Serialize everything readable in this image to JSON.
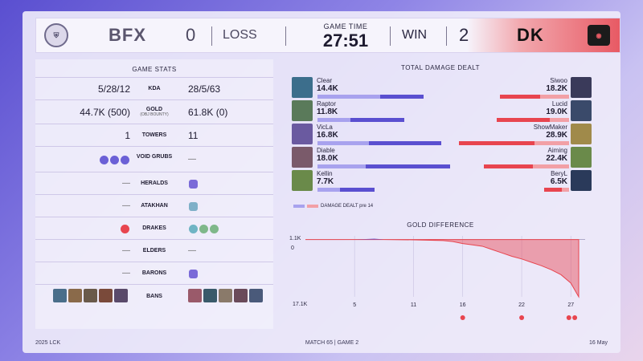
{
  "header": {
    "left_team": "BFX",
    "left_score": "0",
    "left_result": "LOSS",
    "game_time_label": "GAME TIME",
    "game_time": "27:51",
    "right_result": "WIN",
    "right_score": "2",
    "right_team": "DK"
  },
  "stats": {
    "title": "GAME STATS",
    "rows": [
      {
        "label": "KDA",
        "left": "5/28/12",
        "right": "28/5/63"
      },
      {
        "label": "GOLD",
        "sub": "(OBJ BOUNTY)",
        "left": "44.7K (500)",
        "right": "61.8K (0)"
      },
      {
        "label": "TOWERS",
        "left": "1",
        "right": "11"
      },
      {
        "label": "VOID GRUBS",
        "left": "",
        "right": "—"
      },
      {
        "label": "HERALDS",
        "left": "—",
        "right": ""
      },
      {
        "label": "ATAKHAN",
        "left": "—",
        "right": ""
      },
      {
        "label": "DRAKES",
        "left": "",
        "right": ""
      },
      {
        "label": "ELDERS",
        "left": "—",
        "right": "—"
      },
      {
        "label": "BARONS",
        "left": "—",
        "right": ""
      },
      {
        "label": "BANS",
        "left": "",
        "right": ""
      }
    ]
  },
  "damage": {
    "title": "TOTAL DAMAGE DEALT",
    "legend": "DAMAGE DEALT pre 14",
    "left_players": [
      {
        "name": "Clear",
        "value": "14.4K",
        "total": 14.4,
        "pre14": 8.5
      },
      {
        "name": "Raptor",
        "value": "11.8K",
        "total": 11.8,
        "pre14": 4.5
      },
      {
        "name": "VicLa",
        "value": "16.8K",
        "total": 16.8,
        "pre14": 7.0
      },
      {
        "name": "Diable",
        "value": "18.0K",
        "total": 18.0,
        "pre14": 6.5
      },
      {
        "name": "Kellin",
        "value": "7.7K",
        "total": 7.7,
        "pre14": 3.0
      }
    ],
    "right_players": [
      {
        "name": "Siwoo",
        "value": "18.2K",
        "total": 18.2,
        "pre14": 7.5
      },
      {
        "name": "Lucid",
        "value": "19.0K",
        "total": 19.0,
        "pre14": 5.0
      },
      {
        "name": "ShowMaker",
        "value": "28.9K",
        "total": 28.9,
        "pre14": 9.0
      },
      {
        "name": "Aiming",
        "value": "22.4K",
        "total": 22.4,
        "pre14": 9.5
      },
      {
        "name": "BeryL",
        "value": "6.5K",
        "total": 6.5,
        "pre14": 2.0
      }
    ]
  },
  "gold_diff": {
    "title": "GOLD DIFFERENCE",
    "y_top_label": "1.1K",
    "y_zero_label": "0",
    "y_bottom_label": "17.1K",
    "x_ticks": [
      "5",
      "11",
      "16",
      "22",
      "27"
    ]
  },
  "footer": {
    "left": "2025 LCK",
    "center": "MATCH 65 | GAME 2",
    "right": "16 May"
  },
  "colors": {
    "blue": "#5a4fd0",
    "blue_light": "#a8a2ee",
    "red": "#e8454f",
    "red_light": "#f2a0a6"
  },
  "chart_data": {
    "type": "area",
    "x": [
      0,
      2,
      4,
      5,
      6,
      7,
      8,
      11,
      14,
      15,
      16,
      17,
      18,
      19,
      20,
      21,
      22,
      23,
      24,
      25,
      26,
      27,
      27.8
    ],
    "values": [
      0,
      0,
      0,
      0,
      100,
      300,
      0,
      -100,
      -300,
      -600,
      -1200,
      -1600,
      -2000,
      -3000,
      -4000,
      -5000,
      -5800,
      -6800,
      -7800,
      -9000,
      -10500,
      -13000,
      -17100
    ],
    "ylim": [
      -17100,
      1100
    ],
    "x_ticks": [
      5,
      11,
      16,
      22,
      27
    ]
  }
}
